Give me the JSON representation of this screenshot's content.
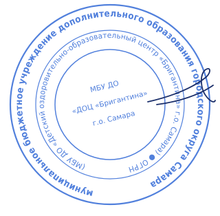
{
  "stamp": {
    "outer_ring": "муниципальное бюджетное учреждение дополнительного образования городского округа Самара",
    "inner_ring": "(МБУ ДО «Детский оздоровительно-образовательный центр «Бригантина» г.о. Самара) ● ОГРН",
    "center": [
      "МБУ ДО",
      "«ДОЦ «Бригантина»",
      "г.о. Самара"
    ]
  }
}
